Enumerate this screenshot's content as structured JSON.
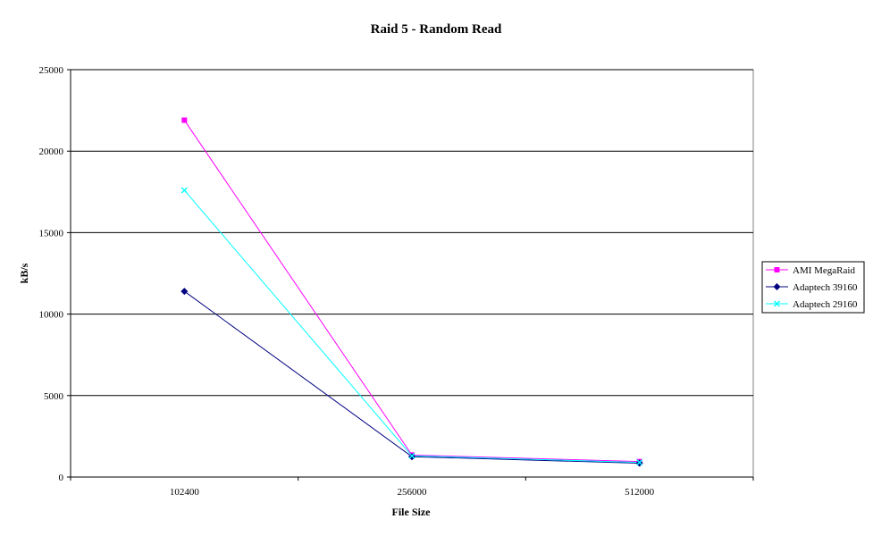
{
  "chart_data": {
    "type": "line",
    "title": "Raid 5 - Random Read",
    "xlabel": "File Size",
    "ylabel": "kB/s",
    "categories": [
      "102400",
      "256000",
      "512000"
    ],
    "ylim": [
      0,
      25000
    ],
    "yticks": [
      "0",
      "5000",
      "10000",
      "15000",
      "20000",
      "25000"
    ],
    "grid": true,
    "legend_position": "right",
    "series": [
      {
        "name": "AMI MegaRaid",
        "values": [
          21900,
          1350,
          950
        ],
        "color": "#ff00ff",
        "marker": "square"
      },
      {
        "name": "Adaptech 39160",
        "values": [
          11400,
          1250,
          850
        ],
        "color": "#000080",
        "marker": "diamond"
      },
      {
        "name": "Adaptech 29160",
        "values": [
          17600,
          1300,
          900
        ],
        "color": "#00ffff",
        "marker": "x"
      }
    ]
  }
}
